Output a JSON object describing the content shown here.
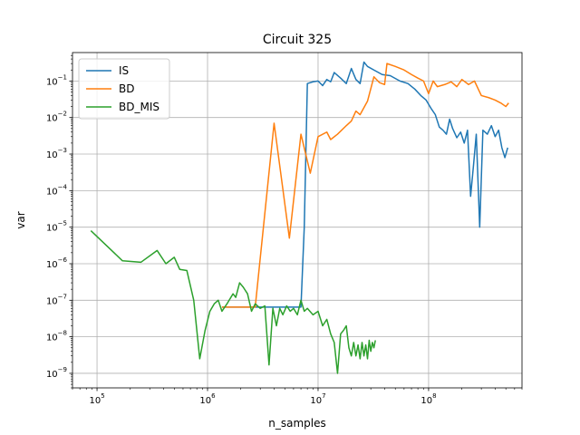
{
  "chart_data": {
    "type": "line",
    "title": "Circuit 325",
    "xlabel": "n_samples",
    "ylabel": "var",
    "xscale": "log",
    "yscale": "log",
    "xlim": [
      60000,
      700000000
    ],
    "ylim": [
      4e-10,
      0.6
    ],
    "grid": true,
    "legend_position": "upper-left",
    "x_ticks": [
      {
        "value": 100000,
        "base": "10",
        "exp": "5"
      },
      {
        "value": 1000000,
        "base": "10",
        "exp": "6"
      },
      {
        "value": 10000000,
        "base": "10",
        "exp": "7"
      },
      {
        "value": 100000000,
        "base": "10",
        "exp": "8"
      }
    ],
    "y_ticks": [
      {
        "value": 1e-09,
        "base": "10",
        "exp": "−9"
      },
      {
        "value": 1e-08,
        "base": "10",
        "exp": "−8"
      },
      {
        "value": 1e-07,
        "base": "10",
        "exp": "−7"
      },
      {
        "value": 1e-06,
        "base": "10",
        "exp": "−6"
      },
      {
        "value": 1e-05,
        "base": "10",
        "exp": "−5"
      },
      {
        "value": 0.0001,
        "base": "10",
        "exp": "−4"
      },
      {
        "value": 0.001,
        "base": "10",
        "exp": "−3"
      },
      {
        "value": 0.01,
        "base": "10",
        "exp": "−2"
      },
      {
        "value": 0.1,
        "base": "10",
        "exp": "−1"
      }
    ],
    "series": [
      {
        "name": "IS",
        "color": "#1f77b4",
        "points": [
          [
            1350000,
            6.5e-08
          ],
          [
            3000000,
            6.5e-08
          ],
          [
            6000000,
            6.5e-08
          ],
          [
            7000000,
            6.5e-08
          ],
          [
            7500000,
            1e-05
          ],
          [
            8000000,
            0.085
          ],
          [
            9000000,
            0.095
          ],
          [
            10000000,
            0.1
          ],
          [
            11000000,
            0.075
          ],
          [
            12000000,
            0.11
          ],
          [
            13000000,
            0.095
          ],
          [
            14000000,
            0.17
          ],
          [
            16000000,
            0.12
          ],
          [
            18000000,
            0.085
          ],
          [
            20000000,
            0.22
          ],
          [
            22000000,
            0.11
          ],
          [
            24000000,
            0.085
          ],
          [
            26000000,
            0.33
          ],
          [
            28000000,
            0.25
          ],
          [
            32000000,
            0.2
          ],
          [
            38000000,
            0.15
          ],
          [
            45000000,
            0.14
          ],
          [
            55000000,
            0.1
          ],
          [
            65000000,
            0.085
          ],
          [
            75000000,
            0.06
          ],
          [
            85000000,
            0.04
          ],
          [
            95000000,
            0.03
          ],
          [
            105000000,
            0.018
          ],
          [
            115000000,
            0.012
          ],
          [
            125000000,
            0.0055
          ],
          [
            135000000,
            0.0045
          ],
          [
            145000000,
            0.0035
          ],
          [
            155000000,
            0.009
          ],
          [
            165000000,
            0.005
          ],
          [
            180000000,
            0.0028
          ],
          [
            195000000,
            0.004
          ],
          [
            210000000,
            0.002
          ],
          [
            225000000,
            0.0045
          ],
          [
            240000000,
            7e-05
          ],
          [
            255000000,
            0.0005
          ],
          [
            270000000,
            0.0035
          ],
          [
            290000000,
            1e-05
          ],
          [
            310000000,
            0.0045
          ],
          [
            340000000,
            0.0035
          ],
          [
            370000000,
            0.006
          ],
          [
            400000000,
            0.003
          ],
          [
            430000000,
            0.0045
          ],
          [
            460000000,
            0.0015
          ],
          [
            490000000,
            0.0008
          ],
          [
            520000000,
            0.0015
          ]
        ]
      },
      {
        "name": "BD",
        "color": "#ff7f0e",
        "points": [
          [
            1350000,
            6.5e-08
          ],
          [
            2700000,
            6.5e-08
          ],
          [
            4000000,
            0.007
          ],
          [
            5500000,
            5e-06
          ],
          [
            7000000,
            0.0035
          ],
          [
            8500000,
            0.0003
          ],
          [
            10000000,
            0.003
          ],
          [
            12000000,
            0.004
          ],
          [
            13000000,
            0.0025
          ],
          [
            15000000,
            0.0035
          ],
          [
            18000000,
            0.006
          ],
          [
            20000000,
            0.008
          ],
          [
            22000000,
            0.015
          ],
          [
            24000000,
            0.012
          ],
          [
            28000000,
            0.028
          ],
          [
            32000000,
            0.13
          ],
          [
            36000000,
            0.09
          ],
          [
            40000000,
            0.08
          ],
          [
            42000000,
            0.3
          ],
          [
            50000000,
            0.25
          ],
          [
            60000000,
            0.2
          ],
          [
            70000000,
            0.15
          ],
          [
            80000000,
            0.12
          ],
          [
            90000000,
            0.1
          ],
          [
            100000000,
            0.045
          ],
          [
            110000000,
            0.1
          ],
          [
            120000000,
            0.07
          ],
          [
            140000000,
            0.08
          ],
          [
            160000000,
            0.095
          ],
          [
            180000000,
            0.07
          ],
          [
            200000000,
            0.11
          ],
          [
            230000000,
            0.08
          ],
          [
            260000000,
            0.1
          ],
          [
            300000000,
            0.04
          ],
          [
            350000000,
            0.035
          ],
          [
            400000000,
            0.03
          ],
          [
            450000000,
            0.025
          ],
          [
            500000000,
            0.02
          ],
          [
            530000000,
            0.025
          ]
        ]
      },
      {
        "name": "BD_MIS",
        "color": "#2ca02c",
        "points": [
          [
            88000,
            8e-06
          ],
          [
            170000,
            1.2e-06
          ],
          [
            250000,
            1.1e-06
          ],
          [
            350000,
            2.3e-06
          ],
          [
            420000,
            1e-06
          ],
          [
            500000,
            1.5e-06
          ],
          [
            560000,
            7e-07
          ],
          [
            650000,
            6.5e-07
          ],
          [
            750000,
            1e-07
          ],
          [
            850000,
            2.5e-09
          ],
          [
            950000,
            1.5e-08
          ],
          [
            1050000,
            5e-08
          ],
          [
            1150000,
            8e-08
          ],
          [
            1250000,
            1e-07
          ],
          [
            1350000,
            5e-08
          ],
          [
            1500000,
            8e-08
          ],
          [
            1700000,
            1.5e-07
          ],
          [
            1800000,
            1.2e-07
          ],
          [
            1950000,
            3e-07
          ],
          [
            2100000,
            2.3e-07
          ],
          [
            2300000,
            1.5e-07
          ],
          [
            2500000,
            5e-08
          ],
          [
            2700000,
            8e-08
          ],
          [
            3000000,
            6e-08
          ],
          [
            3300000,
            7e-08
          ],
          [
            3600000,
            1.7e-09
          ],
          [
            3900000,
            6e-08
          ],
          [
            4200000,
            2e-08
          ],
          [
            4500000,
            6e-08
          ],
          [
            4800000,
            4e-08
          ],
          [
            5200000,
            7e-08
          ],
          [
            5600000,
            5e-08
          ],
          [
            6000000,
            6e-08
          ],
          [
            6500000,
            4e-08
          ],
          [
            7000000,
            1e-07
          ],
          [
            7500000,
            5e-08
          ],
          [
            8000000,
            6e-08
          ],
          [
            9000000,
            4e-08
          ],
          [
            10000000,
            5e-08
          ],
          [
            11000000,
            2e-08
          ],
          [
            12000000,
            3e-08
          ],
          [
            13000000,
            1.2e-08
          ],
          [
            14000000,
            7e-09
          ],
          [
            15000000,
            1e-09
          ],
          [
            16000000,
            1.2e-08
          ],
          [
            17000000,
            1.5e-08
          ],
          [
            18000000,
            2e-08
          ],
          [
            19000000,
            5e-09
          ],
          [
            20000000,
            3e-09
          ],
          [
            21000000,
            7e-09
          ],
          [
            22000000,
            3e-09
          ],
          [
            23000000,
            6e-09
          ],
          [
            24000000,
            2.5e-09
          ],
          [
            25000000,
            7e-09
          ],
          [
            26000000,
            3e-09
          ],
          [
            27000000,
            6e-09
          ],
          [
            28000000,
            2.5e-09
          ],
          [
            29000000,
            8e-09
          ],
          [
            30000000,
            4e-09
          ],
          [
            31000000,
            7e-09
          ],
          [
            32000000,
            5e-09
          ],
          [
            33000000,
            8e-09
          ]
        ]
      }
    ]
  }
}
